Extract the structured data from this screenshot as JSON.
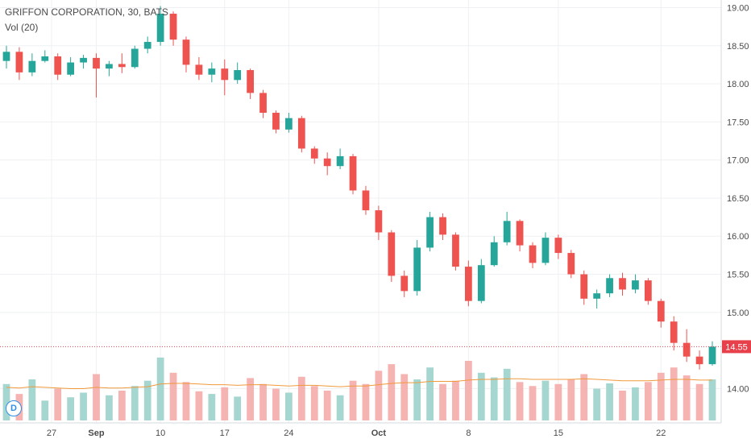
{
  "legend": {
    "symbol_line": "GRIFFON CORPORATION, 30, BATS",
    "volume_indicator": "Vol (20)"
  },
  "badge": {
    "label": "D"
  },
  "colors": {
    "up": "#26a69a",
    "down": "#ef5350",
    "volume_up": "#a5d6cf",
    "volume_down": "#f5b3b1",
    "volume_ma": "#f09a3c",
    "grid": "#eef0f3",
    "price_line": "#e8404b",
    "axis_text": "#4a4a4a"
  },
  "chart_data": {
    "type": "candlestick",
    "title": "GRIFFON CORPORATION, 30, BATS",
    "timeframe": "30",
    "ylim": [
      13.55,
      19.1
    ],
    "y_ticks": [
      "19.00",
      "18.50",
      "18.00",
      "17.50",
      "17.00",
      "16.50",
      "16.00",
      "15.50",
      "15.00",
      "14.00"
    ],
    "x_ticks": [
      "27",
      "Sep",
      "10",
      "17",
      "24",
      "Oct",
      "8",
      "15",
      "22"
    ],
    "last_price": "14.55",
    "grid": true,
    "volume": {
      "name": "Vol (20)",
      "ma_period": 20
    },
    "ohlc": [
      [
        "27",
        18.3,
        18.5,
        18.2,
        18.42
      ],
      [
        "27",
        18.42,
        18.48,
        18.05,
        18.15
      ],
      [
        "27",
        18.15,
        18.4,
        18.1,
        18.3
      ],
      [
        "27",
        18.3,
        18.44,
        18.28,
        18.36
      ],
      [
        "27",
        18.36,
        18.4,
        18.05,
        18.12
      ],
      [
        "27",
        18.12,
        18.35,
        18.1,
        18.28
      ],
      [
        "27",
        18.28,
        18.38,
        18.2,
        18.34
      ],
      [
        "Sep",
        18.34,
        18.4,
        17.82,
        18.2
      ],
      [
        "Sep",
        18.2,
        18.3,
        18.1,
        18.26
      ],
      [
        "Sep",
        18.26,
        18.4,
        18.14,
        18.22
      ],
      [
        "Sep",
        18.22,
        18.5,
        18.2,
        18.46
      ],
      [
        "Sep",
        18.46,
        18.62,
        18.4,
        18.55
      ],
      [
        "10",
        18.55,
        19.02,
        18.5,
        18.92
      ],
      [
        "10",
        18.92,
        18.95,
        18.5,
        18.58
      ],
      [
        "10",
        18.58,
        18.62,
        18.15,
        18.25
      ],
      [
        "10",
        18.25,
        18.35,
        18.05,
        18.12
      ],
      [
        "10",
        18.12,
        18.28,
        18.02,
        18.2
      ],
      [
        "17",
        18.2,
        18.32,
        17.85,
        18.05
      ],
      [
        "17",
        18.05,
        18.28,
        18.0,
        18.18
      ],
      [
        "17",
        18.18,
        18.2,
        17.8,
        17.88
      ],
      [
        "17",
        17.88,
        17.92,
        17.55,
        17.62
      ],
      [
        "17",
        17.62,
        17.65,
        17.35,
        17.4
      ],
      [
        "24",
        17.4,
        17.62,
        17.36,
        17.55
      ],
      [
        "24",
        17.55,
        17.58,
        17.1,
        17.15
      ],
      [
        "24",
        17.15,
        17.18,
        16.95,
        17.02
      ],
      [
        "24",
        17.02,
        17.1,
        16.8,
        16.92
      ],
      [
        "24",
        16.92,
        17.15,
        16.88,
        17.05
      ],
      [
        "24",
        17.05,
        17.08,
        16.55,
        16.6
      ],
      [
        "24",
        16.6,
        16.66,
        16.28,
        16.34
      ],
      [
        "Oct",
        16.34,
        16.4,
        15.95,
        16.05
      ],
      [
        "Oct",
        16.05,
        16.08,
        15.4,
        15.48
      ],
      [
        "Oct",
        15.48,
        15.55,
        15.2,
        15.28
      ],
      [
        "Oct",
        15.28,
        15.95,
        15.22,
        15.85
      ],
      [
        "Oct",
        15.85,
        16.32,
        15.8,
        16.25
      ],
      [
        "Oct",
        16.25,
        16.3,
        15.95,
        16.02
      ],
      [
        "Oct",
        16.02,
        16.05,
        15.55,
        15.6
      ],
      [
        "8",
        15.6,
        15.68,
        15.08,
        15.15
      ],
      [
        "8",
        15.15,
        15.7,
        15.12,
        15.62
      ],
      [
        "8",
        15.62,
        16.0,
        15.6,
        15.92
      ],
      [
        "8",
        15.92,
        16.32,
        15.88,
        16.2
      ],
      [
        "8",
        16.2,
        16.22,
        15.8,
        15.88
      ],
      [
        "8",
        15.88,
        15.92,
        15.58,
        15.65
      ],
      [
        "8",
        15.65,
        16.05,
        15.62,
        15.98
      ],
      [
        "15",
        15.98,
        16.02,
        15.7,
        15.78
      ],
      [
        "15",
        15.78,
        15.82,
        15.45,
        15.5
      ],
      [
        "15",
        15.5,
        15.55,
        15.1,
        15.18
      ],
      [
        "15",
        15.18,
        15.3,
        15.05,
        15.25
      ],
      [
        "15",
        15.25,
        15.5,
        15.2,
        15.45
      ],
      [
        "15",
        15.45,
        15.52,
        15.22,
        15.3
      ],
      [
        "15",
        15.3,
        15.5,
        15.25,
        15.42
      ],
      [
        "15",
        15.42,
        15.45,
        15.1,
        15.15
      ],
      [
        "22",
        15.15,
        15.18,
        14.8,
        14.88
      ],
      [
        "22",
        14.88,
        14.95,
        14.5,
        14.6
      ],
      [
        "22",
        14.6,
        14.78,
        14.35,
        14.42
      ],
      [
        "22",
        14.42,
        14.5,
        14.25,
        14.32
      ],
      [
        "22",
        14.32,
        14.62,
        14.3,
        14.55
      ]
    ],
    "volume_values": [
      55,
      40,
      62,
      30,
      48,
      35,
      42,
      70,
      38,
      45,
      52,
      60,
      95,
      72,
      58,
      44,
      40,
      50,
      36,
      64,
      55,
      48,
      42,
      66,
      52,
      45,
      38,
      60,
      55,
      75,
      85,
      70,
      62,
      80,
      55,
      60,
      90,
      72,
      65,
      78,
      58,
      52,
      60,
      55,
      62,
      70,
      48,
      56,
      45,
      50,
      58,
      72,
      80,
      68,
      55,
      62
    ],
    "volume_ma": [
      50,
      49,
      51,
      50,
      49,
      48,
      48,
      50,
      49,
      49,
      50,
      51,
      55,
      56,
      56,
      55,
      54,
      54,
      53,
      54,
      54,
      53,
      52,
      53,
      53,
      52,
      51,
      52,
      52,
      54,
      56,
      57,
      57,
      59,
      59,
      59,
      61,
      62,
      62,
      63,
      63,
      62,
      62,
      62,
      62,
      63,
      62,
      61,
      60,
      60,
      60,
      61,
      62,
      62,
      61,
      61
    ]
  }
}
